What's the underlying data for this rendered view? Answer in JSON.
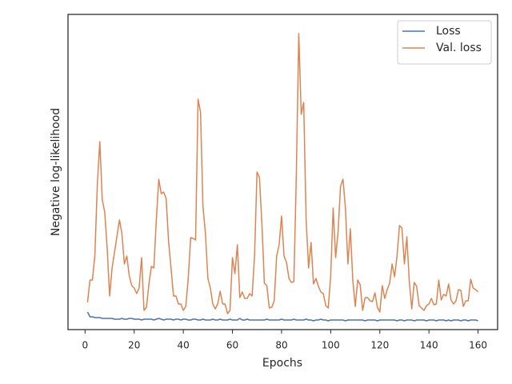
{
  "chart_data": {
    "type": "line",
    "xlabel": "Epochs",
    "ylabel": "Negative log-likelihood",
    "x": [
      1,
      2,
      3,
      4,
      5,
      6,
      7,
      8,
      9,
      10,
      11,
      12,
      13,
      14,
      15,
      16,
      17,
      18,
      19,
      20,
      21,
      22,
      23,
      24,
      25,
      26,
      27,
      28,
      29,
      30,
      31,
      32,
      33,
      34,
      35,
      36,
      37,
      38,
      39,
      40,
      41,
      42,
      43,
      44,
      45,
      46,
      47,
      48,
      49,
      50,
      51,
      52,
      53,
      54,
      55,
      56,
      57,
      58,
      59,
      60,
      61,
      62,
      63,
      64,
      65,
      66,
      67,
      68,
      69,
      70,
      71,
      72,
      73,
      74,
      75,
      76,
      77,
      78,
      79,
      80,
      81,
      82,
      83,
      84,
      85,
      86,
      87,
      88,
      89,
      90,
      91,
      92,
      93,
      94,
      95,
      96,
      97,
      98,
      99,
      100,
      101,
      102,
      103,
      104,
      105,
      106,
      107,
      108,
      109,
      110,
      111,
      112,
      113,
      114,
      115,
      116,
      117,
      118,
      119,
      120,
      121,
      122,
      123,
      124,
      125,
      126,
      127,
      128,
      129,
      130,
      131,
      132,
      133,
      134,
      135,
      136,
      137,
      138,
      139,
      140,
      141,
      142,
      143,
      144,
      145,
      146,
      147,
      148,
      149,
      150,
      151,
      152,
      153,
      154,
      155,
      156,
      157,
      158,
      159,
      160
    ],
    "series": [
      {
        "name": "Loss",
        "color": "#4c72b0",
        "values": [
          22,
          16,
          16,
          15,
          15,
          15,
          14,
          14,
          14,
          14,
          14,
          13,
          13,
          13,
          14,
          13,
          13,
          14,
          14,
          13,
          13,
          13,
          12,
          13,
          13,
          13,
          13,
          12,
          13,
          14,
          13,
          12,
          13,
          13,
          13,
          12,
          13,
          13,
          12,
          13,
          13,
          12,
          12,
          13,
          13,
          12,
          12,
          13,
          12,
          12,
          12,
          13,
          12,
          12,
          13,
          12,
          12,
          12,
          13,
          12,
          12,
          12,
          14,
          12,
          12,
          13,
          12,
          12,
          12,
          12,
          12,
          12,
          12,
          13,
          12,
          12,
          12,
          12,
          12,
          13,
          12,
          12,
          12,
          12,
          13,
          12,
          12,
          12,
          12,
          13,
          12,
          12,
          11,
          12,
          12,
          13,
          12,
          12,
          11,
          12,
          12,
          12,
          12,
          12,
          12,
          11,
          12,
          12,
          12,
          12,
          12,
          12,
          12,
          11,
          12,
          12,
          12,
          12,
          11,
          12,
          12,
          12,
          12,
          12,
          12,
          12,
          11,
          12,
          12,
          11,
          12,
          12,
          12,
          11,
          12,
          12,
          12,
          12,
          11,
          12,
          12,
          12,
          11,
          12,
          12,
          12,
          11,
          12,
          11,
          12,
          12,
          12,
          11,
          12,
          12,
          11,
          12,
          12,
          12,
          11
        ]
      },
      {
        "name": "Val. loss",
        "color": "#dd8452",
        "values": [
          34,
          62,
          62,
          94,
          182,
          235,
          162,
          147,
          102,
          42,
          77,
          97,
          117,
          137,
          120,
          82,
          92,
          67,
          55,
          52,
          45,
          52,
          90,
          24,
          28,
          57,
          79,
          77,
          137,
          188,
          170,
          172,
          164,
          110,
          77,
          42,
          42,
          32,
          32,
          24,
          29,
          64,
          115,
          114,
          112,
          288,
          272,
          154,
          120,
          64,
          52,
          32,
          26,
          32,
          48,
          32,
          32,
          20,
          24,
          90,
          70,
          106,
          40,
          47,
          39,
          39,
          45,
          42,
          92,
          197,
          190,
          132,
          58,
          55,
          27,
          28,
          36,
          92,
          106,
          142,
          92,
          84,
          64,
          59,
          60,
          192,
          370,
          269,
          284,
          137,
          77,
          109,
          57,
          64,
          54,
          47,
          45,
          30,
          27,
          67,
          152,
          90,
          122,
          179,
          188,
          152,
          82,
          126,
          62,
          29,
          62,
          56,
          24,
          40,
          40,
          36,
          35,
          46,
          28,
          22,
          55,
          39,
          50,
          58,
          82,
          66,
          92,
          130,
          127,
          82,
          116,
          60,
          26,
          59,
          54,
          30,
          27,
          24,
          30,
          32,
          39,
          31,
          32,
          62,
          37,
          44,
          42,
          57,
          37,
          32,
          36,
          50,
          49,
          29,
          36,
          36,
          63,
          52,
          50,
          47
        ]
      }
    ],
    "xlim": [
      -6.95,
      167.95
    ],
    "ylim": [
      0,
      394
    ],
    "xticks": [
      0,
      20,
      40,
      60,
      80,
      100,
      120,
      140,
      160
    ],
    "legend": "upper right"
  }
}
